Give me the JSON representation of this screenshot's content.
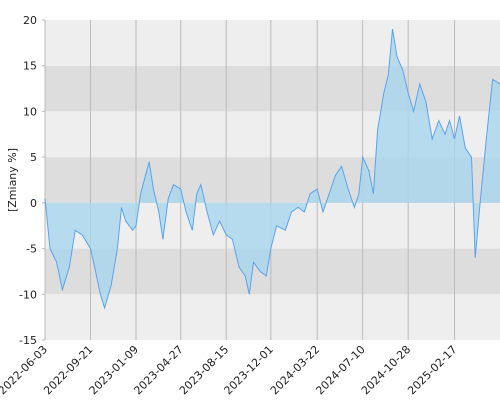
{
  "chart_data": {
    "type": "area",
    "y_label": "[Zmiany %]",
    "x": [
      "2022-06-03",
      "2022-06-15",
      "2022-07-01",
      "2022-07-15",
      "2022-08-01",
      "2022-08-15",
      "2022-09-01",
      "2022-09-21",
      "2022-10-01",
      "2022-10-15",
      "2022-10-25",
      "2022-11-10",
      "2022-11-25",
      "2022-12-05",
      "2022-12-15",
      "2023-01-01",
      "2023-01-09",
      "2023-01-20",
      "2023-02-01",
      "2023-02-10",
      "2023-02-20",
      "2023-03-05",
      "2023-03-15",
      "2023-03-28",
      "2023-04-10",
      "2023-04-27",
      "2023-05-10",
      "2023-05-25",
      "2023-06-05",
      "2023-06-15",
      "2023-06-30",
      "2023-07-15",
      "2023-07-30",
      "2023-08-15",
      "2023-08-30",
      "2023-09-15",
      "2023-09-30",
      "2023-10-10",
      "2023-10-20",
      "2023-11-05",
      "2023-11-20",
      "2023-12-01",
      "2023-12-15",
      "2024-01-05",
      "2024-01-20",
      "2024-02-05",
      "2024-02-20",
      "2024-03-05",
      "2024-03-22",
      "2024-04-05",
      "2024-04-20",
      "2024-05-05",
      "2024-05-20",
      "2024-06-05",
      "2024-06-20",
      "2024-07-01",
      "2024-07-10",
      "2024-07-25",
      "2024-08-05",
      "2024-08-15",
      "2024-08-30",
      "2024-09-10",
      "2024-09-20",
      "2024-10-01",
      "2024-10-15",
      "2024-10-28",
      "2024-11-10",
      "2024-11-25",
      "2024-12-10",
      "2024-12-25",
      "2025-01-10",
      "2025-01-25",
      "2025-02-05",
      "2025-02-17",
      "2025-03-01",
      "2025-03-15",
      "2025-03-30",
      "2025-04-08",
      "2025-04-20",
      "2025-05-05",
      "2025-05-20",
      "2025-06-07"
    ],
    "series": [
      {
        "color": "#5ba3ea",
        "fill": "#a9d6ee",
        "values": [
          0.5,
          -5,
          -6.5,
          -9.5,
          -7,
          -3,
          -3.5,
          -5,
          -7,
          -10,
          -11.5,
          -9,
          -5,
          -0.5,
          -2,
          -3,
          -2.5,
          1,
          3,
          4.5,
          1.5,
          -1,
          -4,
          0.5,
          2,
          1.5,
          -1,
          -3,
          1,
          2,
          -1,
          -3.5,
          -2,
          -3.5,
          -4,
          -7,
          -8,
          -10,
          -6.5,
          -7.5,
          -8,
          -5,
          -2.5,
          -3,
          -1,
          -0.5,
          -1,
          1,
          1.5,
          -1,
          1,
          3,
          4,
          1.5,
          -0.5,
          1,
          5,
          3.5,
          1,
          8,
          12,
          14,
          19,
          16,
          14.5,
          12,
          10,
          13,
          11,
          7,
          9,
          7.5,
          9,
          7,
          9.5,
          6,
          5,
          -6,
          0,
          7,
          13.5,
          13
        ]
      }
    ],
    "xlim": [
      "2022-06-03",
      "2025-06-07"
    ],
    "xticks": [
      "2022-06-03",
      "2022-09-21",
      "2023-01-09",
      "2023-04-27",
      "2023-08-15",
      "2023-12-01",
      "2024-03-22",
      "2024-07-10",
      "2024-10-28",
      "2025-02-17"
    ],
    "ylim": [
      -15,
      20
    ],
    "yticks": [
      -15,
      -10,
      -5,
      0,
      5,
      10,
      15,
      20
    ],
    "band_colors": [
      "#eeeeee",
      "#dddddd"
    ],
    "grid_color": "#bbbbbb"
  }
}
